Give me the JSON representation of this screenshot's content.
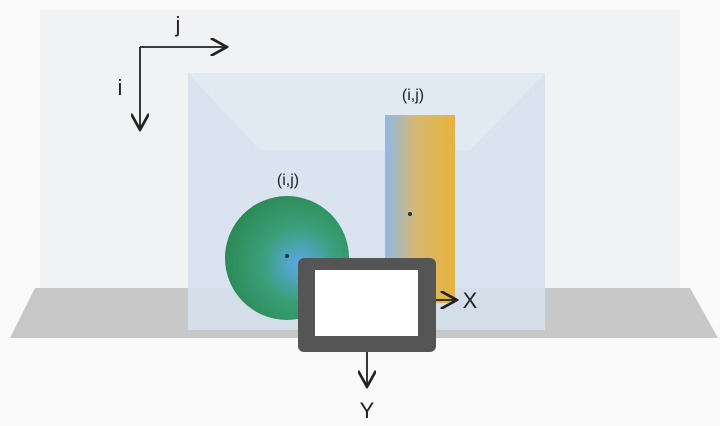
{
  "image_axes": {
    "horizontal": "j",
    "vertical": "i"
  },
  "objects": [
    {
      "label": "(i,j)"
    },
    {
      "label": "(i,j)"
    }
  ],
  "camera_axes": {
    "horizontal": "X",
    "vertical": "Y"
  }
}
